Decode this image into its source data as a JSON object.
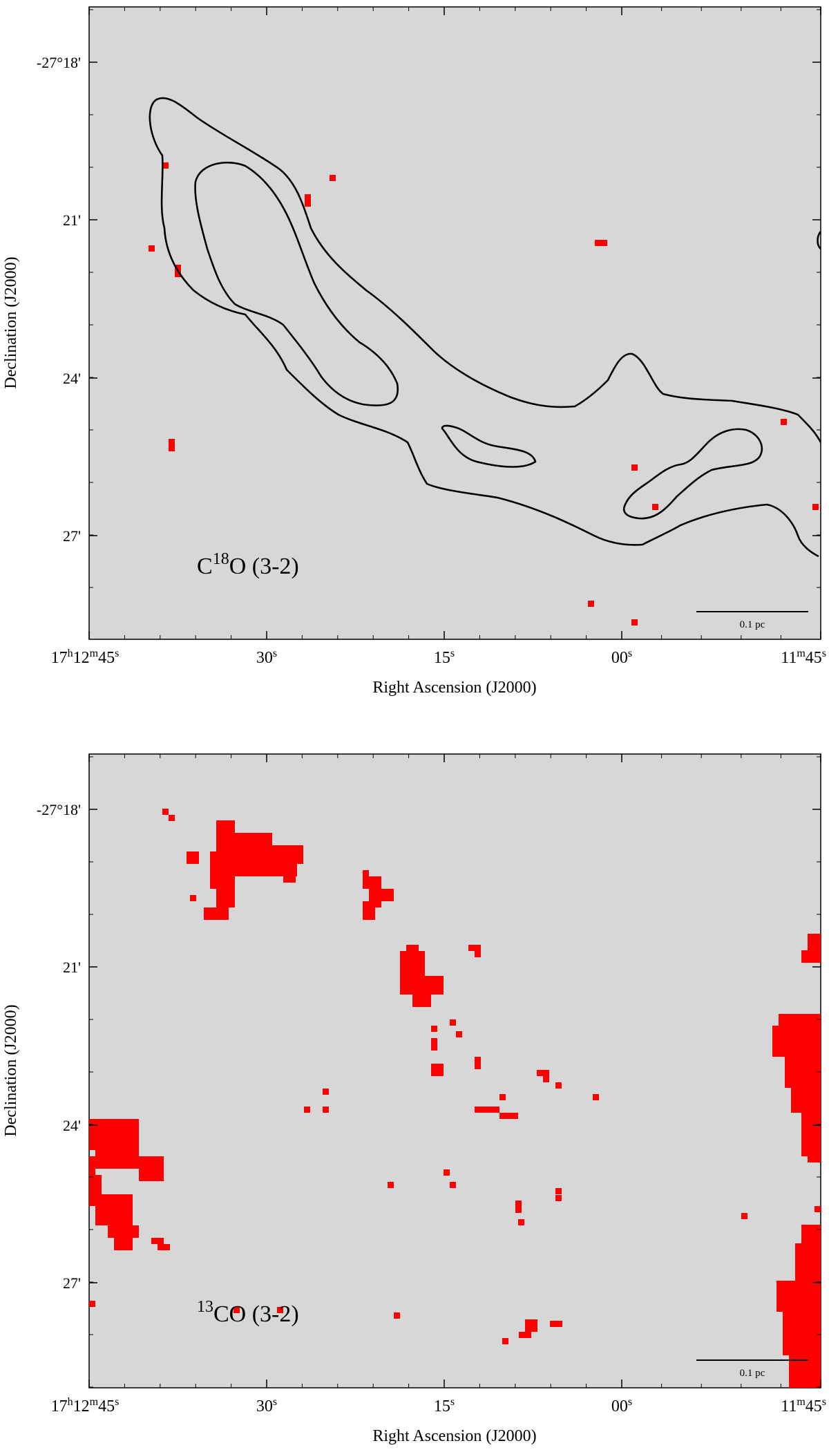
{
  "chart_data": [
    {
      "type": "contour-map",
      "label_main": "C",
      "label_sup": "18",
      "label_rest": "O (3-2)",
      "xlabel": "Right Ascension (J2000)",
      "ylabel": "Declination (J2000)",
      "x_ticks": [
        {
          "pre": "17",
          "h": "h",
          "mid": "12",
          "m": "m",
          "sec": "45",
          "s": "s"
        },
        {
          "pre": "",
          "h": "",
          "mid": "",
          "m": "",
          "sec": "30",
          "s": "s"
        },
        {
          "pre": "",
          "h": "",
          "mid": "",
          "m": "",
          "sec": "15",
          "s": "s"
        },
        {
          "pre": "",
          "h": "",
          "mid": "",
          "m": "",
          "sec": "00",
          "s": "s"
        },
        {
          "pre": "",
          "h": "",
          "mid": "11",
          "m": "m",
          "sec": "45",
          "s": "s"
        }
      ],
      "y_ticks": [
        "-27°18'",
        "21'",
        "24'",
        "27'"
      ],
      "scalebar_label": "0.1 pc",
      "colors": {
        "background": "#d7d7d7",
        "emission": "#ff0000",
        "contour": "#000000"
      }
    },
    {
      "type": "contour-map",
      "label_main": "",
      "label_sup": "13",
      "label_rest": "CO (3-2)",
      "xlabel": "Right Ascension (J2000)",
      "ylabel": "Declination (J2000)",
      "x_ticks": [
        {
          "pre": "17",
          "h": "h",
          "mid": "12",
          "m": "m",
          "sec": "45",
          "s": "s"
        },
        {
          "pre": "",
          "h": "",
          "mid": "",
          "m": "",
          "sec": "30",
          "s": "s"
        },
        {
          "pre": "",
          "h": "",
          "mid": "",
          "m": "",
          "sec": "15",
          "s": "s"
        },
        {
          "pre": "",
          "h": "",
          "mid": "",
          "m": "",
          "sec": "00",
          "s": "s"
        },
        {
          "pre": "",
          "h": "",
          "mid": "11",
          "m": "m",
          "sec": "45",
          "s": "s"
        }
      ],
      "y_ticks": [
        "-27°18'",
        "21'",
        "24'",
        "27'"
      ],
      "scalebar_label": "0.1 pc",
      "colors": {
        "background": "#d7d7d7",
        "emission": "#ff0000",
        "contour": "#000000"
      }
    }
  ]
}
